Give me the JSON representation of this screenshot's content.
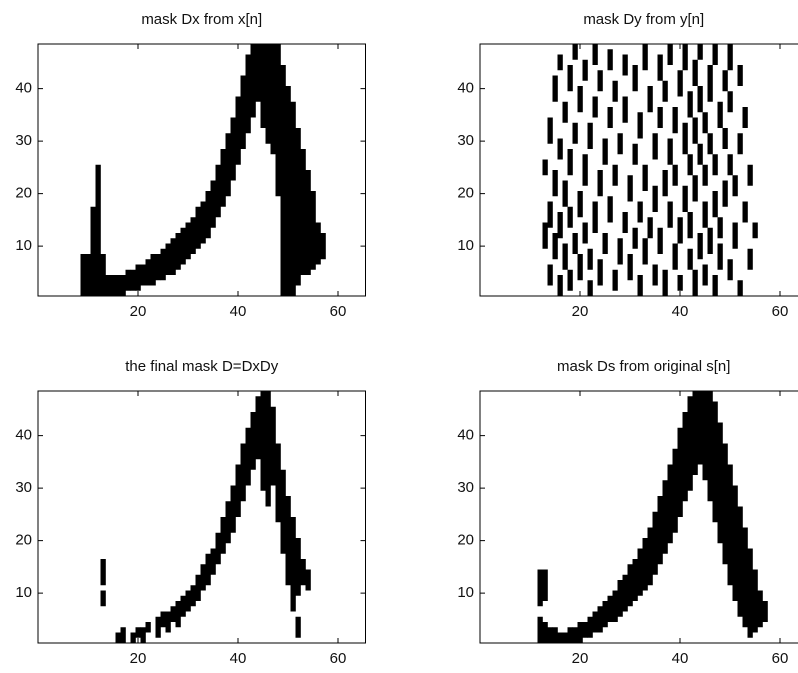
{
  "chart_data": [
    {
      "type": "mask",
      "title": "mask Dx from x[n]",
      "color": "#000000",
      "xlim": [
        0,
        65.5
      ],
      "ylim": [
        0.5,
        48.5
      ],
      "xticks": [
        20,
        40,
        60
      ],
      "yticks": [
        10,
        20,
        30,
        40
      ],
      "spans": [
        [
          9,
          1,
          8
        ],
        [
          10,
          1,
          8
        ],
        [
          11,
          1,
          17
        ],
        [
          12,
          1,
          25
        ],
        [
          13,
          1,
          8
        ],
        [
          14,
          1,
          4
        ],
        [
          15,
          1,
          4
        ],
        [
          16,
          1,
          4
        ],
        [
          17,
          1,
          4
        ],
        [
          18,
          2,
          5
        ],
        [
          19,
          2,
          5
        ],
        [
          20,
          2,
          6
        ],
        [
          21,
          3,
          6
        ],
        [
          22,
          3,
          7
        ],
        [
          23,
          3,
          8
        ],
        [
          24,
          4,
          8
        ],
        [
          25,
          4,
          9
        ],
        [
          26,
          5,
          10
        ],
        [
          27,
          5,
          11
        ],
        [
          28,
          6,
          12
        ],
        [
          29,
          7,
          13
        ],
        [
          30,
          8,
          14
        ],
        [
          31,
          9,
          15
        ],
        [
          32,
          10,
          17
        ],
        [
          33,
          11,
          18
        ],
        [
          34,
          12,
          20
        ],
        [
          35,
          14,
          22
        ],
        [
          36,
          16,
          25
        ],
        [
          37,
          18,
          28
        ],
        [
          38,
          20,
          31
        ],
        [
          39,
          23,
          34
        ],
        [
          40,
          26,
          38
        ],
        [
          41,
          29,
          42
        ],
        [
          42,
          32,
          46
        ],
        [
          43,
          35,
          48
        ],
        [
          44,
          38,
          48
        ],
        [
          45,
          33,
          48
        ],
        [
          46,
          30,
          48
        ],
        [
          47,
          28,
          48
        ],
        [
          48,
          20,
          48
        ],
        [
          49,
          1,
          44
        ],
        [
          50,
          1,
          40
        ],
        [
          51,
          1,
          37
        ],
        [
          52,
          3,
          32
        ],
        [
          53,
          5,
          28
        ],
        [
          54,
          5,
          24
        ],
        [
          55,
          6,
          20
        ],
        [
          56,
          7,
          14
        ],
        [
          57,
          8,
          12
        ]
      ]
    },
    {
      "type": "mask",
      "title": "mask Dy from y[n]",
      "color": "#000000",
      "xlim": [
        0,
        65.5
      ],
      "ylim": [
        0.5,
        48.5
      ],
      "xticks": [
        20,
        40,
        60
      ],
      "yticks": [
        10,
        20,
        30,
        40
      ],
      "spans": [
        [
          13,
          10,
          14
        ],
        [
          13,
          24,
          26
        ],
        [
          14,
          3,
          6
        ],
        [
          14,
          14,
          18
        ],
        [
          14,
          30,
          34
        ],
        [
          15,
          8,
          12
        ],
        [
          15,
          20,
          24
        ],
        [
          15,
          38,
          42
        ],
        [
          16,
          1,
          4
        ],
        [
          16,
          12,
          16
        ],
        [
          16,
          27,
          30
        ],
        [
          16,
          44,
          46
        ],
        [
          17,
          6,
          10
        ],
        [
          17,
          18,
          22
        ],
        [
          17,
          34,
          37
        ],
        [
          18,
          2,
          5
        ],
        [
          18,
          14,
          17
        ],
        [
          18,
          24,
          28
        ],
        [
          18,
          40,
          44
        ],
        [
          19,
          9,
          12
        ],
        [
          19,
          30,
          33
        ],
        [
          19,
          46,
          48
        ],
        [
          20,
          4,
          8
        ],
        [
          20,
          16,
          20
        ],
        [
          20,
          36,
          40
        ],
        [
          21,
          11,
          14
        ],
        [
          21,
          22,
          27
        ],
        [
          21,
          42,
          45
        ],
        [
          22,
          1,
          3
        ],
        [
          22,
          6,
          9
        ],
        [
          22,
          29,
          33
        ],
        [
          23,
          13,
          18
        ],
        [
          23,
          35,
          38
        ],
        [
          23,
          45,
          48
        ],
        [
          24,
          3,
          7
        ],
        [
          24,
          20,
          24
        ],
        [
          24,
          40,
          43
        ],
        [
          25,
          9,
          12
        ],
        [
          25,
          26,
          30
        ],
        [
          26,
          15,
          19
        ],
        [
          26,
          33,
          36
        ],
        [
          26,
          44,
          47
        ],
        [
          27,
          2,
          5
        ],
        [
          27,
          22,
          25
        ],
        [
          27,
          38,
          41
        ],
        [
          28,
          7,
          11
        ],
        [
          28,
          28,
          31
        ],
        [
          29,
          13,
          16
        ],
        [
          29,
          34,
          38
        ],
        [
          29,
          43,
          46
        ],
        [
          30,
          4,
          8
        ],
        [
          30,
          19,
          23
        ],
        [
          31,
          10,
          13
        ],
        [
          31,
          26,
          29
        ],
        [
          31,
          40,
          44
        ],
        [
          32,
          1,
          4
        ],
        [
          32,
          15,
          18
        ],
        [
          32,
          31,
          35
        ],
        [
          33,
          7,
          11
        ],
        [
          33,
          21,
          25
        ],
        [
          33,
          44,
          48
        ],
        [
          34,
          12,
          15
        ],
        [
          34,
          36,
          40
        ],
        [
          35,
          3,
          6
        ],
        [
          35,
          17,
          21
        ],
        [
          35,
          27,
          31
        ],
        [
          36,
          9,
          13
        ],
        [
          36,
          33,
          36
        ],
        [
          36,
          42,
          46
        ],
        [
          37,
          1,
          5
        ],
        [
          37,
          20,
          24
        ],
        [
          37,
          38,
          41
        ],
        [
          38,
          14,
          18
        ],
        [
          38,
          26,
          30
        ],
        [
          38,
          45,
          48
        ],
        [
          39,
          6,
          10
        ],
        [
          39,
          22,
          25
        ],
        [
          39,
          32,
          36
        ],
        [
          40,
          2,
          4
        ],
        [
          40,
          11,
          15
        ],
        [
          40,
          39,
          43
        ],
        [
          41,
          17,
          21
        ],
        [
          41,
          28,
          33
        ],
        [
          41,
          44,
          48
        ],
        [
          42,
          6,
          9
        ],
        [
          42,
          12,
          16
        ],
        [
          42,
          24,
          27
        ],
        [
          42,
          35,
          39
        ],
        [
          43,
          1,
          5
        ],
        [
          43,
          19,
          23
        ],
        [
          43,
          30,
          34
        ],
        [
          43,
          41,
          45
        ],
        [
          44,
          8,
          12
        ],
        [
          44,
          26,
          29
        ],
        [
          44,
          36,
          40
        ],
        [
          44,
          46,
          48
        ],
        [
          45,
          3,
          6
        ],
        [
          45,
          14,
          18
        ],
        [
          45,
          22,
          25
        ],
        [
          45,
          32,
          35
        ],
        [
          46,
          9,
          13
        ],
        [
          46,
          28,
          31
        ],
        [
          46,
          38,
          44
        ],
        [
          47,
          1,
          4
        ],
        [
          47,
          16,
          20
        ],
        [
          47,
          24,
          27
        ],
        [
          47,
          45,
          48
        ],
        [
          48,
          6,
          10
        ],
        [
          48,
          12,
          15
        ],
        [
          48,
          33,
          37
        ],
        [
          49,
          18,
          22
        ],
        [
          49,
          29,
          32
        ],
        [
          49,
          40,
          43
        ],
        [
          50,
          4,
          7
        ],
        [
          50,
          24,
          27
        ],
        [
          50,
          36,
          39
        ],
        [
          50,
          44,
          48
        ],
        [
          51,
          10,
          14
        ],
        [
          51,
          20,
          23
        ],
        [
          52,
          1,
          3
        ],
        [
          52,
          28,
          31
        ],
        [
          52,
          41,
          44
        ],
        [
          53,
          15,
          18
        ],
        [
          53,
          33,
          36
        ],
        [
          54,
          6,
          9
        ],
        [
          54,
          22,
          25
        ],
        [
          55,
          12,
          14
        ]
      ]
    },
    {
      "type": "mask",
      "title": "the final mask D=DxDy",
      "color": "#000000",
      "xlim": [
        0,
        65.5
      ],
      "ylim": [
        0.5,
        48.5
      ],
      "xticks": [
        20,
        40,
        60
      ],
      "yticks": [
        10,
        20,
        30,
        40
      ],
      "spans": [
        [
          13,
          8,
          10
        ],
        [
          13,
          12,
          16
        ],
        [
          16,
          1,
          2
        ],
        [
          17,
          1,
          3
        ],
        [
          19,
          1,
          2
        ],
        [
          20,
          2,
          3
        ],
        [
          21,
          1,
          3
        ],
        [
          22,
          3,
          4
        ],
        [
          24,
          2,
          5
        ],
        [
          25,
          4,
          6
        ],
        [
          26,
          3,
          6
        ],
        [
          27,
          5,
          7
        ],
        [
          28,
          4,
          8
        ],
        [
          29,
          6,
          9
        ],
        [
          30,
          7,
          10
        ],
        [
          31,
          8,
          11
        ],
        [
          32,
          9,
          13
        ],
        [
          33,
          11,
          15
        ],
        [
          34,
          12,
          17
        ],
        [
          35,
          14,
          18
        ],
        [
          36,
          16,
          21
        ],
        [
          37,
          18,
          24
        ],
        [
          38,
          20,
          27
        ],
        [
          39,
          22,
          30
        ],
        [
          40,
          25,
          34
        ],
        [
          41,
          28,
          38
        ],
        [
          42,
          31,
          41
        ],
        [
          43,
          34,
          44
        ],
        [
          44,
          36,
          47
        ],
        [
          45,
          30,
          48
        ],
        [
          46,
          27,
          48
        ],
        [
          47,
          31,
          45
        ],
        [
          48,
          24,
          38
        ],
        [
          49,
          18,
          33
        ],
        [
          50,
          12,
          28
        ],
        [
          51,
          7,
          24
        ],
        [
          52,
          2,
          5
        ],
        [
          52,
          10,
          20
        ],
        [
          53,
          12,
          16
        ],
        [
          54,
          11,
          14
        ]
      ]
    },
    {
      "type": "mask",
      "title": "mask Ds from original s[n]",
      "color": "#000000",
      "xlim": [
        0,
        65.5
      ],
      "ylim": [
        0.5,
        48.5
      ],
      "xticks": [
        20,
        40,
        60
      ],
      "yticks": [
        10,
        20,
        30,
        40
      ],
      "spans": [
        [
          12,
          1,
          5
        ],
        [
          12,
          8,
          14
        ],
        [
          13,
          1,
          4
        ],
        [
          13,
          9,
          14
        ],
        [
          14,
          1,
          3
        ],
        [
          15,
          1,
          3
        ],
        [
          16,
          1,
          2
        ],
        [
          17,
          1,
          2
        ],
        [
          18,
          1,
          3
        ],
        [
          19,
          1,
          3
        ],
        [
          20,
          1,
          4
        ],
        [
          21,
          2,
          4
        ],
        [
          22,
          2,
          5
        ],
        [
          23,
          3,
          6
        ],
        [
          24,
          3,
          7
        ],
        [
          25,
          4,
          8
        ],
        [
          26,
          5,
          9
        ],
        [
          27,
          5,
          10
        ],
        [
          28,
          6,
          12
        ],
        [
          29,
          7,
          13
        ],
        [
          30,
          8,
          15
        ],
        [
          31,
          9,
          16
        ],
        [
          32,
          10,
          18
        ],
        [
          33,
          11,
          20
        ],
        [
          34,
          12,
          22
        ],
        [
          35,
          14,
          25
        ],
        [
          36,
          16,
          28
        ],
        [
          37,
          18,
          31
        ],
        [
          38,
          20,
          34
        ],
        [
          39,
          22,
          37
        ],
        [
          40,
          25,
          41
        ],
        [
          41,
          28,
          44
        ],
        [
          42,
          30,
          47
        ],
        [
          43,
          33,
          48
        ],
        [
          44,
          35,
          48
        ],
        [
          45,
          32,
          48
        ],
        [
          46,
          28,
          48
        ],
        [
          47,
          24,
          46
        ],
        [
          48,
          20,
          42
        ],
        [
          49,
          16,
          38
        ],
        [
          50,
          12,
          34
        ],
        [
          51,
          9,
          30
        ],
        [
          52,
          6,
          26
        ],
        [
          53,
          4,
          22
        ],
        [
          54,
          2,
          18
        ],
        [
          55,
          3,
          14
        ],
        [
          56,
          4,
          10
        ],
        [
          57,
          5,
          8
        ]
      ]
    }
  ]
}
